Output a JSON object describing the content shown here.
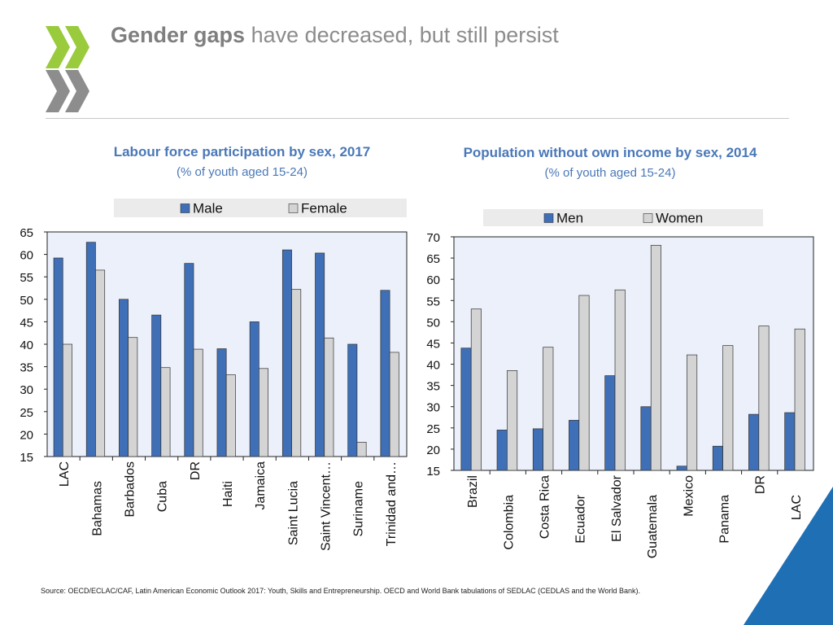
{
  "header": {
    "title_bold": "Gender gaps",
    "title_rest": "have decreased, but still persist"
  },
  "colors": {
    "male": "#3f6fb6",
    "female": "#d4d4d4",
    "plot_bg": "#ebf0fa",
    "title_blue": "#4a78b8",
    "logo_green": "#9acb3c",
    "logo_gray": "#8d8d8d",
    "corner_blue": "#1f6fb4"
  },
  "chart_data": [
    {
      "id": "chart1",
      "type": "bar",
      "title": "Labour force participation by sex, 2017",
      "subtitle": "(% of youth aged 15-24)",
      "categories": [
        "LAC",
        "Bahamas",
        "Barbados",
        "Cuba",
        "DR",
        "Haiti",
        "Jamaica",
        "Saint Lucia",
        "Saint Vincent…",
        "Suriname",
        "Trinidad and…"
      ],
      "series": [
        {
          "name": "Male",
          "values": [
            59.2,
            62.7,
            50.0,
            46.5,
            58.0,
            39.0,
            45.0,
            61.0,
            60.3,
            40.0,
            52.0
          ]
        },
        {
          "name": "Female",
          "values": [
            40.0,
            56.5,
            41.5,
            34.8,
            38.9,
            33.2,
            34.6,
            52.2,
            41.4,
            18.2,
            38.2
          ]
        }
      ],
      "ylim": [
        15,
        65
      ],
      "yticks": [
        "15",
        "20",
        "25",
        "30",
        "35",
        "40",
        "45",
        "50",
        "55",
        "60",
        "65"
      ],
      "legend": "top",
      "grid": false
    },
    {
      "id": "chart2",
      "type": "bar",
      "title": "Population without own income by sex, 2014",
      "subtitle": "(% of youth aged 15-24)",
      "categories": [
        "Brazil",
        "Colombia",
        "Costa Rica",
        "Ecuador",
        "El Salvador",
        "Guatemala",
        "Mexico",
        "Panama",
        "DR",
        "LAC"
      ],
      "series": [
        {
          "name": "Men",
          "values": [
            43.8,
            24.5,
            24.8,
            26.8,
            37.3,
            30.0,
            16.0,
            20.7,
            28.2,
            28.6
          ]
        },
        {
          "name": "Women",
          "values": [
            53.0,
            38.5,
            44.0,
            56.2,
            57.5,
            68.0,
            42.2,
            44.4,
            49.0,
            48.3
          ]
        }
      ],
      "ylim": [
        15,
        70
      ],
      "yticks": [
        "15",
        "20",
        "25",
        "30",
        "35",
        "40",
        "45",
        "50",
        "55",
        "60",
        "65",
        "70"
      ],
      "legend": "top",
      "grid": false
    }
  ],
  "footer": {
    "source": "Source: OECD/ECLAC/CAF, Latin American Economic Outlook 2017: Youth, Skills and Entrepreneurship. OECD and World Bank tabulations of SEDLAC (CEDLAS and the World Bank)."
  }
}
